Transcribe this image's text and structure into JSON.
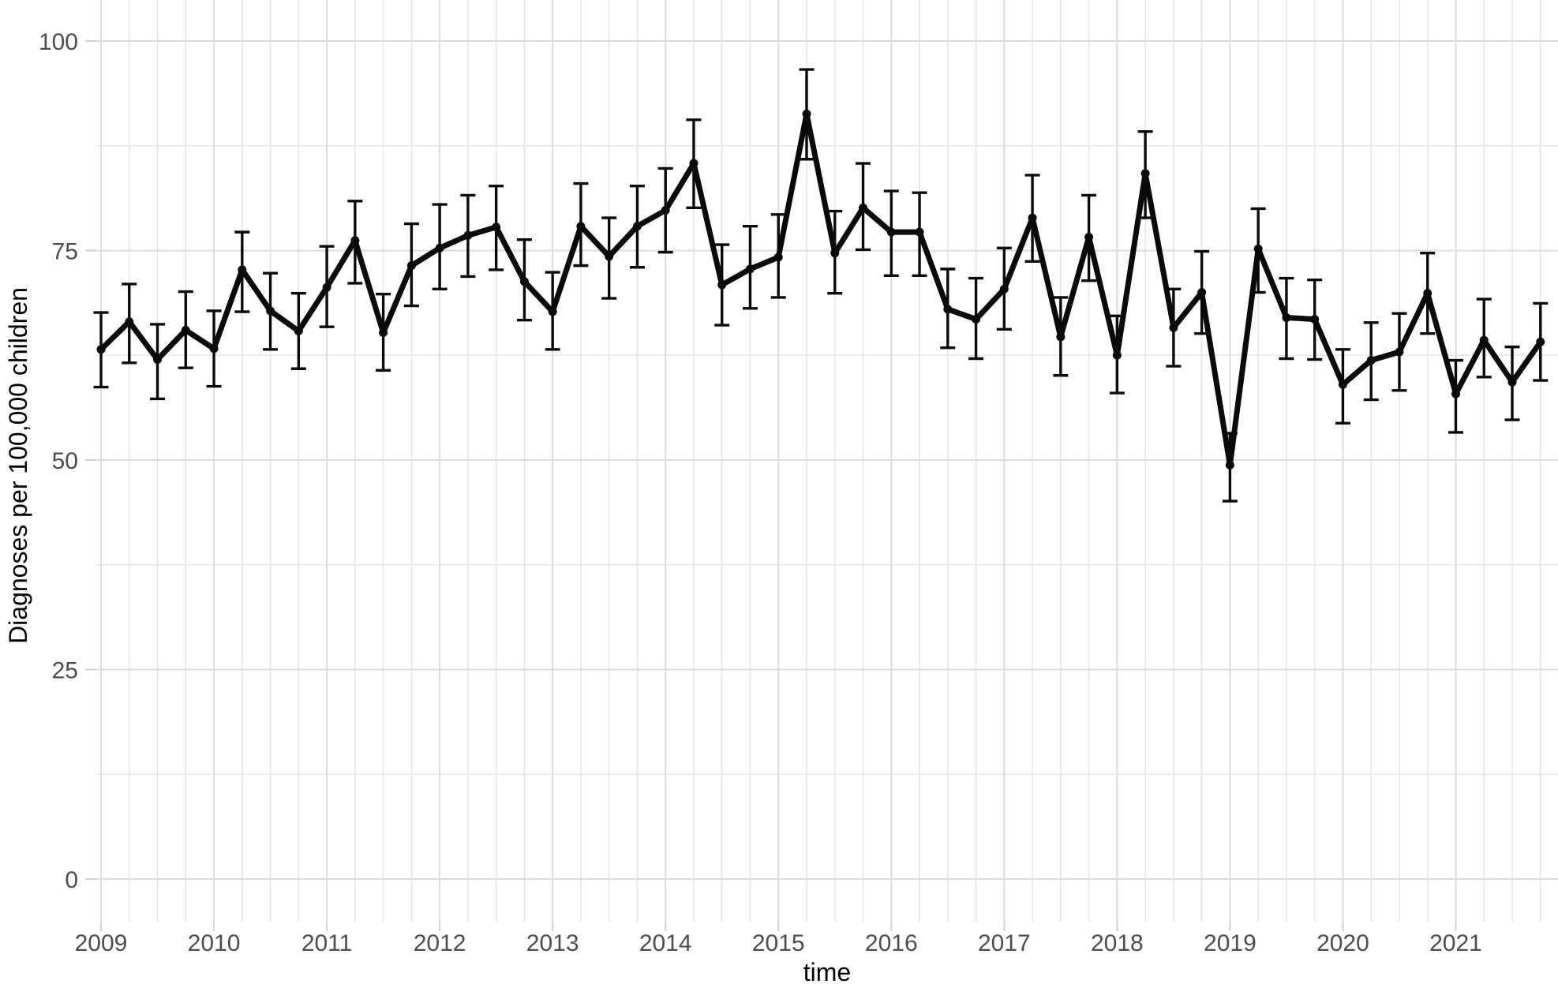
{
  "chart_data": {
    "type": "line",
    "title": "",
    "xlabel": "time",
    "ylabel": "Diagnoses per 100,000 children",
    "x_unit": "quarter",
    "years": [
      "2009",
      "2010",
      "2011",
      "2012",
      "2013",
      "2014",
      "2015",
      "2016",
      "2017",
      "2018",
      "2019",
      "2020",
      "2021"
    ],
    "y_ticks": [
      0,
      25,
      50,
      75,
      100
    ],
    "y_minor_ticks": [
      12.5,
      37.5,
      62.5,
      87.5
    ],
    "ylim": [
      -5,
      105
    ],
    "grid": "major and minor, both axes",
    "legend": "none",
    "error_bars": true,
    "series_name": "Diagnoses per 100,000 children",
    "points": [
      {
        "t": "2009 Q1",
        "y": 63.2,
        "lo": 58.7,
        "hi": 67.6
      },
      {
        "t": "2009 Q2",
        "y": 66.5,
        "lo": 61.6,
        "hi": 71.0
      },
      {
        "t": "2009 Q3",
        "y": 62.0,
        "lo": 57.3,
        "hi": 66.2
      },
      {
        "t": "2009 Q4",
        "y": 65.5,
        "lo": 61.0,
        "hi": 70.1
      },
      {
        "t": "2010 Q1",
        "y": 63.3,
        "lo": 58.8,
        "hi": 67.8
      },
      {
        "t": "2010 Q2",
        "y": 72.7,
        "lo": 67.7,
        "hi": 77.2
      },
      {
        "t": "2010 Q3",
        "y": 67.8,
        "lo": 63.2,
        "hi": 72.3
      },
      {
        "t": "2010 Q4",
        "y": 65.4,
        "lo": 60.9,
        "hi": 69.9
      },
      {
        "t": "2011 Q1",
        "y": 70.6,
        "lo": 65.9,
        "hi": 75.5
      },
      {
        "t": "2011 Q2",
        "y": 76.2,
        "lo": 71.1,
        "hi": 80.9
      },
      {
        "t": "2011 Q3",
        "y": 65.2,
        "lo": 60.7,
        "hi": 69.8
      },
      {
        "t": "2011 Q4",
        "y": 73.2,
        "lo": 68.4,
        "hi": 78.2
      },
      {
        "t": "2012 Q1",
        "y": 75.3,
        "lo": 70.4,
        "hi": 80.5
      },
      {
        "t": "2012 Q2",
        "y": 76.8,
        "lo": 71.9,
        "hi": 81.6
      },
      {
        "t": "2012 Q3",
        "y": 77.8,
        "lo": 72.7,
        "hi": 82.7
      },
      {
        "t": "2012 Q4",
        "y": 71.3,
        "lo": 66.7,
        "hi": 76.3
      },
      {
        "t": "2013 Q1",
        "y": 67.7,
        "lo": 63.2,
        "hi": 72.4
      },
      {
        "t": "2013 Q2",
        "y": 77.9,
        "lo": 73.2,
        "hi": 83.0
      },
      {
        "t": "2013 Q3",
        "y": 74.3,
        "lo": 69.3,
        "hi": 78.9
      },
      {
        "t": "2013 Q4",
        "y": 77.9,
        "lo": 73.0,
        "hi": 82.7
      },
      {
        "t": "2014 Q1",
        "y": 79.8,
        "lo": 74.8,
        "hi": 84.8
      },
      {
        "t": "2014 Q2",
        "y": 85.4,
        "lo": 80.1,
        "hi": 90.6
      },
      {
        "t": "2014 Q3",
        "y": 70.9,
        "lo": 66.1,
        "hi": 75.7
      },
      {
        "t": "2014 Q4",
        "y": 72.8,
        "lo": 68.1,
        "hi": 77.9
      },
      {
        "t": "2015 Q1",
        "y": 74.2,
        "lo": 69.4,
        "hi": 79.3
      },
      {
        "t": "2015 Q2",
        "y": 91.3,
        "lo": 85.9,
        "hi": 96.6
      },
      {
        "t": "2015 Q3",
        "y": 74.7,
        "lo": 69.9,
        "hi": 79.7
      },
      {
        "t": "2015 Q4",
        "y": 80.1,
        "lo": 75.1,
        "hi": 85.4
      },
      {
        "t": "2016 Q1",
        "y": 77.2,
        "lo": 72.0,
        "hi": 82.1
      },
      {
        "t": "2016 Q2",
        "y": 77.2,
        "lo": 72.0,
        "hi": 81.9
      },
      {
        "t": "2016 Q3",
        "y": 68.0,
        "lo": 63.4,
        "hi": 72.8
      },
      {
        "t": "2016 Q4",
        "y": 66.8,
        "lo": 62.1,
        "hi": 71.7
      },
      {
        "t": "2017 Q1",
        "y": 70.4,
        "lo": 65.6,
        "hi": 75.3
      },
      {
        "t": "2017 Q2",
        "y": 78.9,
        "lo": 73.7,
        "hi": 84.0
      },
      {
        "t": "2017 Q3",
        "y": 64.7,
        "lo": 60.1,
        "hi": 69.4
      },
      {
        "t": "2017 Q4",
        "y": 76.6,
        "lo": 71.4,
        "hi": 81.6
      },
      {
        "t": "2018 Q1",
        "y": 62.5,
        "lo": 58.0,
        "hi": 67.2
      },
      {
        "t": "2018 Q2",
        "y": 84.2,
        "lo": 78.9,
        "hi": 89.2
      },
      {
        "t": "2018 Q3",
        "y": 65.8,
        "lo": 61.2,
        "hi": 70.4
      },
      {
        "t": "2018 Q4",
        "y": 70.0,
        "lo": 65.1,
        "hi": 74.9
      },
      {
        "t": "2019 Q1",
        "y": 49.4,
        "lo": 45.1,
        "hi": 53.2
      },
      {
        "t": "2019 Q2",
        "y": 75.2,
        "lo": 70.0,
        "hi": 80.0
      },
      {
        "t": "2019 Q3",
        "y": 67.0,
        "lo": 62.1,
        "hi": 71.7
      },
      {
        "t": "2019 Q4",
        "y": 66.8,
        "lo": 62.0,
        "hi": 71.5
      },
      {
        "t": "2020 Q1",
        "y": 59.0,
        "lo": 54.4,
        "hi": 63.2
      },
      {
        "t": "2020 Q2",
        "y": 61.9,
        "lo": 57.2,
        "hi": 66.4
      },
      {
        "t": "2020 Q3",
        "y": 62.9,
        "lo": 58.3,
        "hi": 67.5
      },
      {
        "t": "2020 Q4",
        "y": 69.9,
        "lo": 65.1,
        "hi": 74.7
      },
      {
        "t": "2021 Q1",
        "y": 57.9,
        "lo": 53.3,
        "hi": 61.9
      },
      {
        "t": "2021 Q2",
        "y": 64.3,
        "lo": 59.9,
        "hi": 69.2
      },
      {
        "t": "2021 Q3",
        "y": 59.3,
        "lo": 54.8,
        "hi": 63.5
      },
      {
        "t": "2021 Q4",
        "y": 64.1,
        "lo": 59.5,
        "hi": 68.7
      }
    ],
    "colors": {
      "series": "#0a0a0a",
      "grid_major": "#dcdcdc",
      "grid_minor": "#e7e7e7",
      "axis_tick": "#d2d2d2",
      "tick_label": "#4d4d4d",
      "axis_title": "#000000",
      "background": "#ffffff"
    }
  }
}
